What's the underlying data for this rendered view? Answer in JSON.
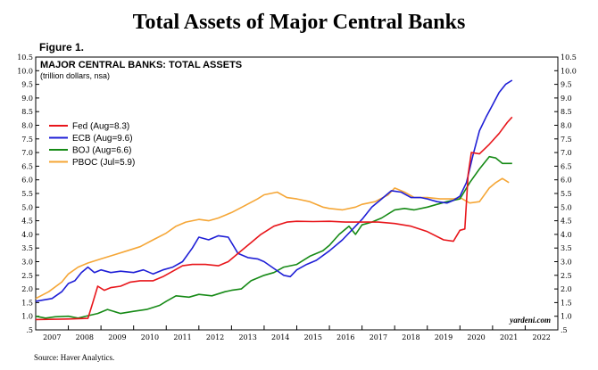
{
  "page_title": "Total Assets of Major Central Banks",
  "figure_label": "Figure 1.",
  "source": "Source: Haver Analytics.",
  "colors": {
    "fed": "#e8161b",
    "ecb": "#1f1fd6",
    "boj": "#168a16",
    "pboc": "#f5a636"
  },
  "chart_data": {
    "type": "line",
    "title": "MAJOR CENTRAL BANKS: TOTAL ASSETS",
    "subtitle": "(trillion dollars, nsa)",
    "watermark": "yardeni.com",
    "xlim": [
      2007,
      2023
    ],
    "ylim": [
      0.5,
      10.5
    ],
    "x_tick_labels": [
      "2007",
      "2008",
      "2009",
      "2010",
      "2011",
      "2012",
      "2013",
      "2014",
      "2015",
      "2016",
      "2017",
      "2018",
      "2019",
      "2020",
      "2021",
      "2022"
    ],
    "y_ticks": [
      ".5",
      "1.0",
      "1.5",
      "2.0",
      "2.5",
      "3.0",
      "3.5",
      "4.0",
      "4.5",
      "5.0",
      "5.5",
      "6.0",
      "6.5",
      "7.0",
      "7.5",
      "8.0",
      "8.5",
      "9.0",
      "9.5",
      "10.0",
      "10.5"
    ],
    "legend_position": "upper-left",
    "grid": false,
    "series": [
      {
        "name": "Fed (Aug=8.3)",
        "color_key": "fed",
        "points": [
          [
            2007.0,
            0.88
          ],
          [
            2008.0,
            0.9
          ],
          [
            2008.6,
            0.92
          ],
          [
            2008.75,
            1.5
          ],
          [
            2008.9,
            2.1
          ],
          [
            2009.1,
            1.95
          ],
          [
            2009.3,
            2.05
          ],
          [
            2009.6,
            2.1
          ],
          [
            2009.9,
            2.25
          ],
          [
            2010.2,
            2.3
          ],
          [
            2010.6,
            2.3
          ],
          [
            2010.9,
            2.45
          ],
          [
            2011.2,
            2.65
          ],
          [
            2011.5,
            2.85
          ],
          [
            2011.8,
            2.9
          ],
          [
            2012.2,
            2.9
          ],
          [
            2012.6,
            2.85
          ],
          [
            2012.9,
            3.0
          ],
          [
            2013.2,
            3.3
          ],
          [
            2013.6,
            3.7
          ],
          [
            2013.9,
            4.0
          ],
          [
            2014.3,
            4.3
          ],
          [
            2014.7,
            4.45
          ],
          [
            2015.0,
            4.48
          ],
          [
            2015.5,
            4.47
          ],
          [
            2016.0,
            4.48
          ],
          [
            2016.5,
            4.45
          ],
          [
            2017.0,
            4.45
          ],
          [
            2017.5,
            4.45
          ],
          [
            2018.0,
            4.4
          ],
          [
            2018.5,
            4.3
          ],
          [
            2019.0,
            4.1
          ],
          [
            2019.5,
            3.8
          ],
          [
            2019.8,
            3.75
          ],
          [
            2020.0,
            4.15
          ],
          [
            2020.15,
            4.2
          ],
          [
            2020.25,
            6.2
          ],
          [
            2020.35,
            7.0
          ],
          [
            2020.6,
            6.95
          ],
          [
            2020.9,
            7.3
          ],
          [
            2021.2,
            7.7
          ],
          [
            2021.45,
            8.1
          ],
          [
            2021.6,
            8.3
          ]
        ]
      },
      {
        "name": "ECB (Aug=9.6)",
        "color_key": "ecb",
        "points": [
          [
            2007.0,
            1.55
          ],
          [
            2007.5,
            1.65
          ],
          [
            2007.8,
            1.9
          ],
          [
            2008.0,
            2.2
          ],
          [
            2008.2,
            2.3
          ],
          [
            2008.4,
            2.6
          ],
          [
            2008.6,
            2.8
          ],
          [
            2008.8,
            2.6
          ],
          [
            2009.0,
            2.7
          ],
          [
            2009.3,
            2.6
          ],
          [
            2009.6,
            2.65
          ],
          [
            2010.0,
            2.6
          ],
          [
            2010.3,
            2.7
          ],
          [
            2010.6,
            2.55
          ],
          [
            2010.9,
            2.7
          ],
          [
            2011.2,
            2.8
          ],
          [
            2011.5,
            3.0
          ],
          [
            2011.8,
            3.5
          ],
          [
            2012.0,
            3.9
          ],
          [
            2012.3,
            3.8
          ],
          [
            2012.6,
            3.95
          ],
          [
            2012.9,
            3.9
          ],
          [
            2013.2,
            3.3
          ],
          [
            2013.5,
            3.15
          ],
          [
            2013.8,
            3.1
          ],
          [
            2014.0,
            3.0
          ],
          [
            2014.3,
            2.75
          ],
          [
            2014.6,
            2.5
          ],
          [
            2014.8,
            2.45
          ],
          [
            2015.0,
            2.7
          ],
          [
            2015.3,
            2.9
          ],
          [
            2015.6,
            3.05
          ],
          [
            2016.0,
            3.4
          ],
          [
            2016.4,
            3.8
          ],
          [
            2016.8,
            4.3
          ],
          [
            2017.0,
            4.55
          ],
          [
            2017.3,
            5.0
          ],
          [
            2017.6,
            5.3
          ],
          [
            2017.9,
            5.6
          ],
          [
            2018.2,
            5.55
          ],
          [
            2018.5,
            5.35
          ],
          [
            2018.8,
            5.35
          ],
          [
            2019.0,
            5.3
          ],
          [
            2019.3,
            5.2
          ],
          [
            2019.6,
            5.15
          ],
          [
            2019.8,
            5.25
          ],
          [
            2020.0,
            5.4
          ],
          [
            2020.2,
            5.9
          ],
          [
            2020.4,
            6.9
          ],
          [
            2020.6,
            7.8
          ],
          [
            2020.8,
            8.3
          ],
          [
            2021.0,
            8.75
          ],
          [
            2021.2,
            9.2
          ],
          [
            2021.4,
            9.5
          ],
          [
            2021.6,
            9.65
          ]
        ]
      },
      {
        "name": "BOJ (Aug=6.6)",
        "color_key": "boj",
        "points": [
          [
            2007.0,
            1.0
          ],
          [
            2007.3,
            0.93
          ],
          [
            2007.6,
            0.98
          ],
          [
            2008.0,
            1.0
          ],
          [
            2008.3,
            0.93
          ],
          [
            2008.6,
            1.02
          ],
          [
            2008.9,
            1.1
          ],
          [
            2009.2,
            1.25
          ],
          [
            2009.6,
            1.1
          ],
          [
            2010.0,
            1.18
          ],
          [
            2010.4,
            1.25
          ],
          [
            2010.8,
            1.4
          ],
          [
            2011.0,
            1.55
          ],
          [
            2011.3,
            1.75
          ],
          [
            2011.7,
            1.7
          ],
          [
            2012.0,
            1.8
          ],
          [
            2012.4,
            1.75
          ],
          [
            2012.8,
            1.9
          ],
          [
            2013.0,
            1.95
          ],
          [
            2013.3,
            2.0
          ],
          [
            2013.6,
            2.3
          ],
          [
            2014.0,
            2.5
          ],
          [
            2014.3,
            2.6
          ],
          [
            2014.6,
            2.8
          ],
          [
            2015.0,
            2.9
          ],
          [
            2015.4,
            3.2
          ],
          [
            2015.8,
            3.4
          ],
          [
            2016.0,
            3.6
          ],
          [
            2016.3,
            4.0
          ],
          [
            2016.6,
            4.3
          ],
          [
            2016.8,
            4.0
          ],
          [
            2017.0,
            4.35
          ],
          [
            2017.3,
            4.45
          ],
          [
            2017.6,
            4.6
          ],
          [
            2018.0,
            4.9
          ],
          [
            2018.3,
            4.95
          ],
          [
            2018.6,
            4.9
          ],
          [
            2019.0,
            5.0
          ],
          [
            2019.3,
            5.1
          ],
          [
            2019.6,
            5.2
          ],
          [
            2020.0,
            5.3
          ],
          [
            2020.3,
            5.9
          ],
          [
            2020.6,
            6.4
          ],
          [
            2020.9,
            6.85
          ],
          [
            2021.1,
            6.8
          ],
          [
            2021.3,
            6.6
          ],
          [
            2021.6,
            6.6
          ]
        ]
      },
      {
        "name": "PBOC (Jul=5.9)",
        "color_key": "pboc",
        "points": [
          [
            2007.0,
            1.65
          ],
          [
            2007.4,
            1.9
          ],
          [
            2007.8,
            2.25
          ],
          [
            2008.0,
            2.55
          ],
          [
            2008.3,
            2.8
          ],
          [
            2008.6,
            2.95
          ],
          [
            2009.0,
            3.1
          ],
          [
            2009.4,
            3.25
          ],
          [
            2009.8,
            3.4
          ],
          [
            2010.2,
            3.55
          ],
          [
            2010.6,
            3.8
          ],
          [
            2011.0,
            4.05
          ],
          [
            2011.3,
            4.3
          ],
          [
            2011.6,
            4.45
          ],
          [
            2012.0,
            4.55
          ],
          [
            2012.3,
            4.5
          ],
          [
            2012.6,
            4.6
          ],
          [
            2013.0,
            4.8
          ],
          [
            2013.4,
            5.05
          ],
          [
            2013.8,
            5.3
          ],
          [
            2014.0,
            5.45
          ],
          [
            2014.4,
            5.55
          ],
          [
            2014.7,
            5.35
          ],
          [
            2015.0,
            5.3
          ],
          [
            2015.4,
            5.2
          ],
          [
            2015.8,
            5.0
          ],
          [
            2016.0,
            4.95
          ],
          [
            2016.4,
            4.9
          ],
          [
            2016.8,
            5.0
          ],
          [
            2017.0,
            5.1
          ],
          [
            2017.4,
            5.2
          ],
          [
            2017.8,
            5.45
          ],
          [
            2018.0,
            5.7
          ],
          [
            2018.3,
            5.55
          ],
          [
            2018.6,
            5.35
          ],
          [
            2019.0,
            5.35
          ],
          [
            2019.4,
            5.3
          ],
          [
            2019.8,
            5.3
          ],
          [
            2020.0,
            5.35
          ],
          [
            2020.3,
            5.15
          ],
          [
            2020.6,
            5.2
          ],
          [
            2020.9,
            5.7
          ],
          [
            2021.1,
            5.9
          ],
          [
            2021.3,
            6.05
          ],
          [
            2021.5,
            5.9
          ]
        ]
      }
    ]
  }
}
